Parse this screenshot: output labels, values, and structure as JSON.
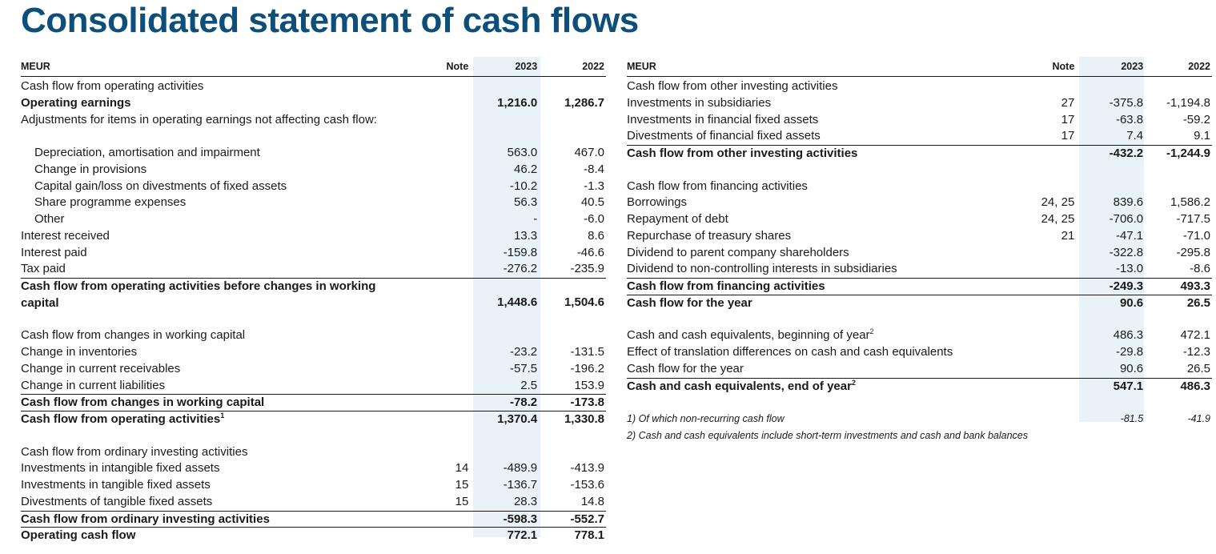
{
  "title": "Consolidated statement of cash flows",
  "headers": {
    "meur": "MEUR",
    "note": "Note",
    "y2023": "2023",
    "y2022": "2022"
  },
  "left": [
    {
      "label": "Cash flow from operating activities",
      "note": "",
      "v2023": "",
      "v2022": "",
      "style": "sec"
    },
    {
      "label": "Operating earnings",
      "note": "",
      "v2023": "1,216.0",
      "v2022": "1,286.7",
      "style": "boldnum"
    },
    {
      "label": "Adjustments for items in operating earnings not affecting cash flow:",
      "note": "",
      "v2023": "",
      "v2022": "",
      "style": "tall"
    },
    {
      "label": "Depreciation, amortisation and impairment",
      "note": "",
      "v2023": "563.0",
      "v2022": "467.0",
      "style": "ind"
    },
    {
      "label": "Change in provisions",
      "note": "",
      "v2023": "46.2",
      "v2022": "-8.4",
      "style": "ind"
    },
    {
      "label": "Capital gain/loss on divestments of fixed assets",
      "note": "",
      "v2023": "-10.2",
      "v2022": "-1.3",
      "style": "ind"
    },
    {
      "label": "Share programme expenses",
      "note": "",
      "v2023": "56.3",
      "v2022": "40.5",
      "style": "ind"
    },
    {
      "label": "Other",
      "note": "",
      "v2023": "-",
      "v2022": "-6.0",
      "style": "ind"
    },
    {
      "label": "Interest received",
      "note": "",
      "v2023": "13.3",
      "v2022": "8.6",
      "style": ""
    },
    {
      "label": "Interest paid",
      "note": "",
      "v2023": "-159.8",
      "v2022": "-46.6",
      "style": ""
    },
    {
      "label": "Tax paid",
      "note": "",
      "v2023": "-276.2",
      "v2022": "-235.9",
      "style": ""
    },
    {
      "label": "Cash flow from operating activities before changes in working capital",
      "note": "",
      "v2023": "1,448.6",
      "v2022": "1,504.6",
      "style": "tall bt boldnum"
    },
    {
      "label": "",
      "note": "",
      "v2023": "",
      "v2022": "",
      "style": "gap"
    },
    {
      "label": "Cash flow from changes in working capital",
      "note": "",
      "v2023": "",
      "v2022": "",
      "style": "sec"
    },
    {
      "label": "Change in inventories",
      "note": "",
      "v2023": "-23.2",
      "v2022": "-131.5",
      "style": ""
    },
    {
      "label": "Change in current receivables",
      "note": "",
      "v2023": "-57.5",
      "v2022": "-196.2",
      "style": ""
    },
    {
      "label": "Change in current liabilities",
      "note": "",
      "v2023": "2.5",
      "v2022": "153.9",
      "style": ""
    },
    {
      "label": "Cash flow from changes in working capital",
      "note": "",
      "v2023": "-78.2",
      "v2022": "-173.8",
      "style": "bt boldnum"
    },
    {
      "label": "Cash flow from operating activities",
      "sup": "1",
      "note": "",
      "v2023": "1,370.4",
      "v2022": "1,330.8",
      "style": "bt boldnum"
    },
    {
      "label": "",
      "note": "",
      "v2023": "",
      "v2022": "",
      "style": "gap"
    },
    {
      "label": "Cash flow from ordinary investing activities",
      "note": "",
      "v2023": "",
      "v2022": "",
      "style": "sec"
    },
    {
      "label": "Investments in intangible fixed assets",
      "note": "14",
      "v2023": "-489.9",
      "v2022": "-413.9",
      "style": ""
    },
    {
      "label": "Investments in tangible fixed assets",
      "note": "15",
      "v2023": "-136.7",
      "v2022": "-153.6",
      "style": ""
    },
    {
      "label": "Divestments of tangible fixed assets",
      "note": "15",
      "v2023": "28.3",
      "v2022": "14.8",
      "style": ""
    },
    {
      "label": "Cash flow from ordinary investing activities",
      "note": "",
      "v2023": "-598.3",
      "v2022": "-552.7",
      "style": "bt boldnum"
    },
    {
      "label": "Operating cash flow",
      "note": "",
      "v2023": "772.1",
      "v2022": "778.1",
      "style": "bt boldnum"
    }
  ],
  "right": [
    {
      "label": "Cash flow from other investing activities",
      "note": "",
      "v2023": "",
      "v2022": "",
      "style": "sec"
    },
    {
      "label": "Investments in subsidiaries",
      "note": "27",
      "v2023": "-375.8",
      "v2022": "-1,194.8",
      "style": ""
    },
    {
      "label": "Investments in financial fixed assets",
      "note": "17",
      "v2023": "-63.8",
      "v2022": "-59.2",
      "style": ""
    },
    {
      "label": "Divestments of financial fixed assets",
      "note": "17",
      "v2023": "7.4",
      "v2022": "9.1",
      "style": ""
    },
    {
      "label": "Cash flow from other investing activities",
      "note": "",
      "v2023": "-432.2",
      "v2022": "-1,244.9",
      "style": "bt boldnum"
    },
    {
      "label": "",
      "note": "",
      "v2023": "",
      "v2022": "",
      "style": "gap"
    },
    {
      "label": "Cash flow from financing activities",
      "note": "",
      "v2023": "",
      "v2022": "",
      "style": "sec"
    },
    {
      "label": "Borrowings",
      "note": "24, 25",
      "v2023": "839.6",
      "v2022": "1,586.2",
      "style": ""
    },
    {
      "label": "Repayment of debt",
      "note": "24, 25",
      "v2023": "-706.0",
      "v2022": "-717.5",
      "style": ""
    },
    {
      "label": "Repurchase of treasury shares",
      "note": "21",
      "v2023": "-47.1",
      "v2022": "-71.0",
      "style": ""
    },
    {
      "label": "Dividend to parent company shareholders",
      "note": "",
      "v2023": "-322.8",
      "v2022": "-295.8",
      "style": ""
    },
    {
      "label": "Dividend to non-controlling interests in subsidiaries",
      "note": "",
      "v2023": "-13.0",
      "v2022": "-8.6",
      "style": ""
    },
    {
      "label": "Cash flow from financing activities",
      "note": "",
      "v2023": "-249.3",
      "v2022": "493.3",
      "style": "bt boldnum"
    },
    {
      "label": "Cash flow for the year",
      "note": "",
      "v2023": "90.6",
      "v2022": "26.5",
      "style": "bt boldnum"
    },
    {
      "label": "",
      "note": "",
      "v2023": "",
      "v2022": "",
      "style": "gap"
    },
    {
      "label": "Cash and cash equivalents, beginning of year",
      "sup": "2",
      "note": "",
      "v2023": "486.3",
      "v2022": "472.1",
      "style": ""
    },
    {
      "label": "Effect of translation differences on cash and cash equivalents",
      "note": "",
      "v2023": "-29.8",
      "v2022": "-12.3",
      "style": ""
    },
    {
      "label": "Cash flow for the year",
      "note": "",
      "v2023": "90.6",
      "v2022": "26.5",
      "style": ""
    },
    {
      "label": "Cash and cash equivalents, end of year",
      "sup": "2",
      "note": "",
      "v2023": "547.1",
      "v2022": "486.3",
      "style": "bt boldnum"
    },
    {
      "label": "",
      "note": "",
      "v2023": "",
      "v2022": "",
      "style": "gap"
    },
    {
      "label": "1) Of which non-recurring cash flow",
      "note": "",
      "v2023": "-81.5",
      "v2022": "-41.9",
      "style": "fn"
    },
    {
      "label": "2) Cash and cash equivalents include short-term investments and cash and bank balances",
      "note": "",
      "v2023": "",
      "v2022": "",
      "style": "fn"
    }
  ]
}
